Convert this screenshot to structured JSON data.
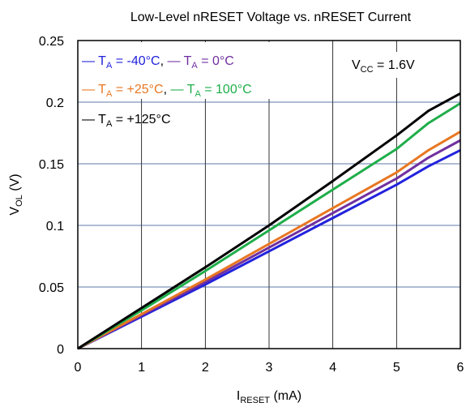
{
  "chart_data": {
    "type": "line",
    "title": "Low-Level nRESET Voltage vs. nRESET Current",
    "xlabel": {
      "main": "I",
      "sub": "RESET",
      "unit": " (mA)"
    },
    "ylabel": {
      "main": "V",
      "sub": "OL",
      "unit": " (V)"
    },
    "xlim": [
      0,
      6
    ],
    "ylim": [
      0,
      0.25
    ],
    "xticks": [
      "0",
      "1",
      "2",
      "3",
      "4",
      "5",
      "6"
    ],
    "yticks": [
      "0",
      "0.05",
      "0.1",
      "0.15",
      "0.2",
      "0.25"
    ],
    "xtick_values": [
      0,
      1,
      2,
      3,
      4,
      5,
      6
    ],
    "ytick_values": [
      0,
      0.05,
      0.1,
      0.15,
      0.2,
      0.25
    ],
    "grid": true,
    "annotation": {
      "main": "V",
      "sub": "CC",
      "rest": " = 1.6V"
    },
    "series": [
      {
        "name": "T_A = -40°C",
        "label_pre": "— T",
        "label_sub": "A",
        "label_post": " = -40°C",
        "color": "#2222dd",
        "x": [
          0,
          1,
          2,
          3,
          4,
          5,
          5.5,
          6
        ],
        "y": [
          0,
          0.026,
          0.052,
          0.079,
          0.106,
          0.133,
          0.148,
          0.161
        ]
      },
      {
        "name": "T_A = 0°C",
        "label_pre": "— T",
        "label_sub": "A",
        "label_post": " = 0°C",
        "color": "#7030a0",
        "x": [
          0,
          1,
          2,
          3,
          4,
          5,
          5.5,
          6
        ],
        "y": [
          0,
          0.027,
          0.054,
          0.082,
          0.11,
          0.138,
          0.155,
          0.169
        ]
      },
      {
        "name": "T_A = +25°C",
        "label_pre": "— T",
        "label_sub": "A",
        "label_post": " = +25°C",
        "color": "#e87722",
        "x": [
          0,
          1,
          2,
          3,
          4,
          5,
          5.5,
          6
        ],
        "y": [
          0,
          0.028,
          0.056,
          0.085,
          0.114,
          0.143,
          0.161,
          0.176
        ]
      },
      {
        "name": "T_A = 100°C",
        "label_pre": "— T",
        "label_sub": "A",
        "label_post": " = 100°C",
        "color": "#1fae4a",
        "x": [
          0,
          1,
          2,
          3,
          4,
          5,
          5.5,
          6
        ],
        "y": [
          0,
          0.031,
          0.063,
          0.096,
          0.129,
          0.162,
          0.183,
          0.199
        ]
      },
      {
        "name": "T_A = +125°C",
        "label_pre": "— T",
        "label_sub": "A",
        "label_post": " = +125°C",
        "color": "#000000",
        "x": [
          0,
          1,
          2,
          3,
          4,
          5,
          5.5,
          6
        ],
        "y": [
          0,
          0.033,
          0.066,
          0.1,
          0.136,
          0.173,
          0.193,
          0.207
        ]
      }
    ]
  }
}
